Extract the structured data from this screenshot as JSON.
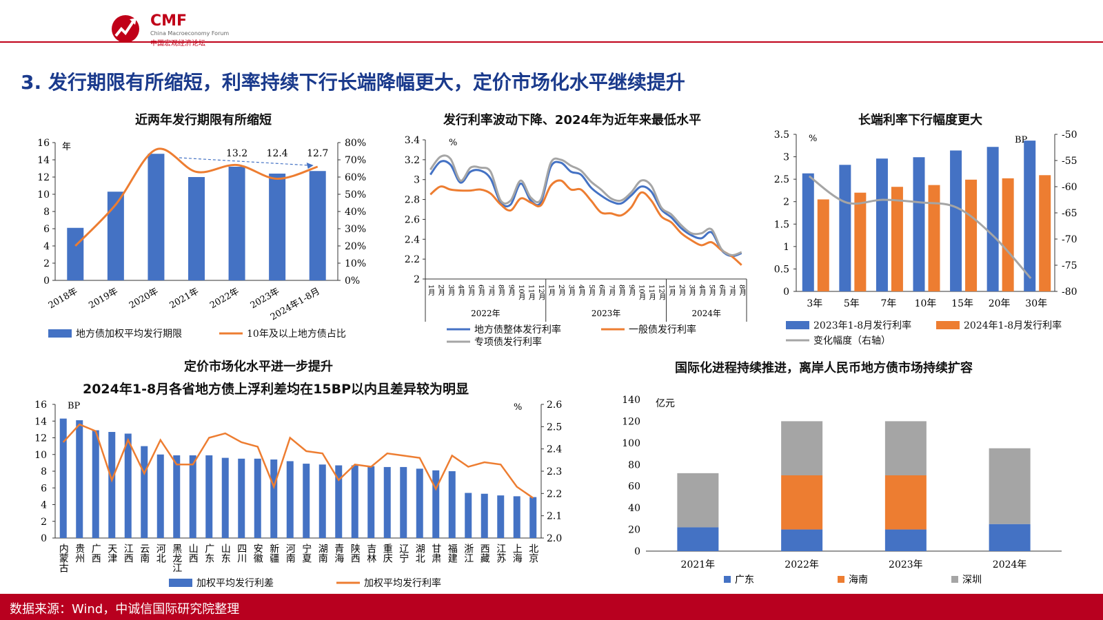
{
  "header": {
    "logo_text": "CMF",
    "logo_sub": "China Macroeconomy Forum",
    "logo_cn": "中国宏观经济论坛",
    "title": "3. 发行期限有所缩短，利率持续下行长端降幅更大，定价市场化水平继续提升"
  },
  "footer": {
    "source": "数据来源：Wind，中诚信国际研究院整理"
  },
  "colors": {
    "blue": "#4472c4",
    "orange": "#ed7d31",
    "gray": "#a5a5a5",
    "red": "#c00018"
  },
  "chart_data": [
    {
      "id": "c1",
      "type": "bar",
      "title": "近两年发行期限有所缩短",
      "categories": [
        "2018年",
        "2019年",
        "2020年",
        "2021年",
        "2022年",
        "2023年",
        "2024年1-8月"
      ],
      "series": [
        {
          "name": "地方债加权平均发行期限",
          "type": "bar",
          "axis": "left",
          "values": [
            6.1,
            10.3,
            14.7,
            12.0,
            13.2,
            12.4,
            12.7
          ]
        },
        {
          "name": "10年及以上地方债占比",
          "type": "line",
          "axis": "right",
          "values": [
            0.2,
            0.44,
            0.76,
            0.63,
            0.67,
            0.59,
            0.66
          ]
        }
      ],
      "data_labels": [
        "13.2",
        "12.4",
        "12.7"
      ],
      "ylim_left": [
        0,
        16
      ],
      "yticks_left": [
        "0",
        "2",
        "4",
        "6",
        "8",
        "10",
        "12",
        "14",
        "16"
      ],
      "ylim_right": [
        0,
        0.8
      ],
      "yticks_right": [
        "0%",
        "10%",
        "20%",
        "30%",
        "40%",
        "50%",
        "60%",
        "70%",
        "80%"
      ],
      "unit_left": "年"
    },
    {
      "id": "c2",
      "type": "line",
      "title": "发行利率波动下降、2024年为近年来最低水平",
      "month_labels": [
        "1月",
        "2月",
        "3月",
        "4月",
        "5月",
        "6月",
        "7月",
        "8月",
        "9月",
        "10月",
        "11月",
        "12月",
        "1月",
        "2月",
        "3月",
        "4月",
        "5月",
        "6月",
        "7月",
        "8月",
        "9月",
        "10月",
        "11月",
        "12月",
        "1月",
        "2月",
        "3月",
        "4月",
        "5月",
        "6月",
        "7月",
        "8月"
      ],
      "years": [
        "2022年",
        "2023年",
        "2024年"
      ],
      "series": [
        {
          "name": "地方债整体发行利率",
          "values": [
            3.05,
            3.18,
            3.15,
            2.97,
            3.08,
            3.09,
            3.01,
            2.77,
            2.75,
            2.96,
            2.79,
            2.77,
            3.13,
            3.17,
            3.08,
            3.05,
            2.92,
            2.84,
            2.78,
            2.76,
            2.84,
            2.93,
            2.88,
            2.7,
            2.62,
            2.51,
            2.44,
            2.41,
            2.47,
            2.29,
            2.23,
            2.26
          ]
        },
        {
          "name": "一般债发行利率",
          "values": [
            2.85,
            2.93,
            2.9,
            2.89,
            2.89,
            2.9,
            2.86,
            2.75,
            2.69,
            2.81,
            2.77,
            2.74,
            2.94,
            2.99,
            2.9,
            2.9,
            2.79,
            2.67,
            2.66,
            2.64,
            2.72,
            2.87,
            2.79,
            2.63,
            2.57,
            2.46,
            2.39,
            2.34,
            2.37,
            2.29,
            2.23,
            2.14
          ]
        },
        {
          "name": "专项债发行利率",
          "values": [
            3.1,
            3.23,
            3.21,
            2.99,
            3.12,
            3.12,
            3.08,
            2.79,
            2.79,
            2.99,
            2.82,
            2.8,
            3.17,
            3.2,
            3.14,
            3.09,
            2.98,
            2.9,
            2.81,
            2.79,
            2.87,
            2.99,
            2.94,
            2.72,
            2.65,
            2.54,
            2.46,
            2.46,
            2.5,
            2.3,
            2.24,
            2.27
          ]
        }
      ],
      "ylim": [
        2,
        3.4
      ],
      "yticks": [
        "2",
        "2.2",
        "2.4",
        "2.6",
        "2.8",
        "3",
        "3.2",
        "3.4"
      ],
      "unit": "%"
    },
    {
      "id": "c3",
      "type": "bar",
      "title": "长端利率下行幅度更大",
      "categories": [
        "3年",
        "5年",
        "7年",
        "10年",
        "15年",
        "20年",
        "30年"
      ],
      "series": [
        {
          "name": "2023年1-8月发行利率",
          "type": "bar",
          "axis": "left",
          "values": [
            2.63,
            2.82,
            2.96,
            2.99,
            3.14,
            3.22,
            3.36
          ]
        },
        {
          "name": "2024年1-8月发行利率",
          "type": "bar",
          "axis": "left",
          "values": [
            2.05,
            2.2,
            2.33,
            2.37,
            2.49,
            2.52,
            2.59
          ]
        },
        {
          "name": "变化幅度（右轴）",
          "type": "line",
          "axis": "right",
          "values": [
            -58,
            -63,
            -62.5,
            -63,
            -64,
            -69.5,
            -77.5
          ]
        }
      ],
      "ylim_left": [
        0,
        3.5
      ],
      "yticks_left": [
        "0",
        "0.5",
        "1",
        "1.5",
        "2",
        "2.5",
        "3",
        "3.5"
      ],
      "ylim_right": [
        -80,
        -50
      ],
      "yticks_right": [
        "-50",
        "-55",
        "-60",
        "-65",
        "-70",
        "-75",
        "-80"
      ],
      "unit_left": "%",
      "unit_right": "BP"
    },
    {
      "id": "c4",
      "type": "bar",
      "title": "定价市场化水平进一步提升",
      "subtitle": "2024年1-8月各省地方债上浮利差均在15BP以内且差异较为明显",
      "categories": [
        "内蒙古",
        "贵州",
        "广西",
        "天津",
        "江西",
        "云南",
        "河北",
        "黑龙江",
        "山西",
        "广东",
        "山东",
        "四川",
        "安徽",
        "新疆",
        "河南",
        "宁夏",
        "湖南",
        "青海",
        "陕西",
        "吉林",
        "重庆",
        "辽宁",
        "湖北",
        "甘肃",
        "福建",
        "浙江",
        "西藏",
        "江苏",
        "上海",
        "北京"
      ],
      "series": [
        {
          "name": "加权平均发行利差",
          "type": "bar",
          "axis": "left",
          "values": [
            14.3,
            14.1,
            12.9,
            12.7,
            12.5,
            11.0,
            10.0,
            9.9,
            9.9,
            9.9,
            9.6,
            9.5,
            9.5,
            9.4,
            9.2,
            8.9,
            8.8,
            8.7,
            8.7,
            8.6,
            8.5,
            8.5,
            8.3,
            8.1,
            8.0,
            5.4,
            5.3,
            5.1,
            5.0,
            4.9
          ]
        },
        {
          "name": "加权平均发行利率",
          "type": "line",
          "axis": "right",
          "values": [
            2.43,
            2.51,
            2.48,
            2.26,
            2.44,
            2.29,
            2.44,
            2.33,
            2.33,
            2.45,
            2.47,
            2.43,
            2.41,
            2.23,
            2.45,
            2.39,
            2.38,
            2.26,
            2.33,
            2.32,
            2.38,
            2.37,
            2.36,
            2.22,
            2.37,
            2.32,
            2.34,
            2.33,
            2.23,
            2.18
          ]
        }
      ],
      "ylim_left": [
        0,
        16
      ],
      "yticks_left": [
        "0",
        "2",
        "4",
        "6",
        "8",
        "10",
        "12",
        "14",
        "16"
      ],
      "ylim_right": [
        2.0,
        2.6
      ],
      "yticks_right": [
        "2.0",
        "2.1",
        "2.2",
        "2.3",
        "2.4",
        "2.5",
        "2.6"
      ],
      "unit_left": "BP",
      "unit_right": "%"
    },
    {
      "id": "c5",
      "type": "bar",
      "stacked": true,
      "title": "国际化进程持续推进，离岸人民币地方债市场持续扩容",
      "categories": [
        "2021年",
        "2022年",
        "2023年",
        "2024年"
      ],
      "series": [
        {
          "name": "广东",
          "values": [
            22,
            20,
            20,
            25
          ]
        },
        {
          "name": "海南",
          "values": [
            0,
            50,
            50,
            0
          ]
        },
        {
          "name": "深圳",
          "values": [
            50,
            50,
            50,
            70
          ]
        }
      ],
      "ylim": [
        0,
        140
      ],
      "yticks": [
        "0",
        "20",
        "40",
        "60",
        "80",
        "100",
        "120",
        "140"
      ],
      "unit": "亿元"
    }
  ]
}
